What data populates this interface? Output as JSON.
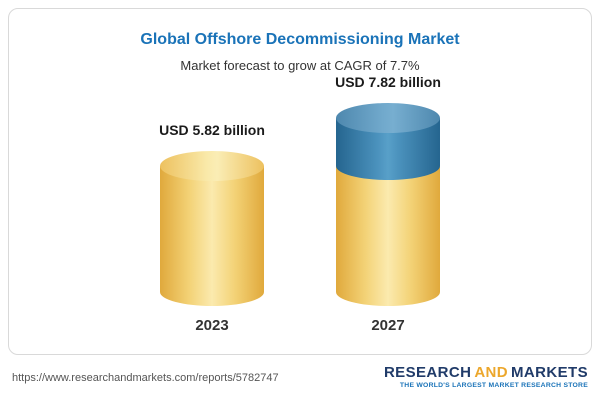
{
  "card": {
    "title": "Global Offshore Decommissioning Market",
    "subtitle": "Market forecast to grow at CAGR of 7.7%"
  },
  "chart_data": {
    "type": "bar",
    "title": "Global Offshore Decommissioning Market",
    "subtitle": "Market forecast to grow at CAGR of 7.7%",
    "cagr": "7.7%",
    "unit": "USD billion",
    "categories": [
      "2023",
      "2027"
    ],
    "values": [
      5.82,
      7.82
    ],
    "value_labels": [
      "USD 5.82 billion",
      "USD 7.82 billion"
    ],
    "ylim": [
      0,
      8
    ],
    "grid": false,
    "legend": "none",
    "bar_style": "3d-cylinder",
    "series_note": "2027 bar shows growth segment (7.82 - 5.82 = 2.0) in blue on top of yellow base"
  },
  "colors": {
    "title_blue": "#1a73b8",
    "cylinder_yellow": "#f3d276",
    "cylinder_blue": "#4b92bd",
    "logo_navy": "#203b69",
    "logo_gold": "#eca72c",
    "url_gray": "#555555",
    "card_border": "#d9d9d9"
  },
  "footer": {
    "url": "https://www.researchandmarkets.com/reports/5782747",
    "logo": {
      "research": "RESEARCH",
      "and": "AND",
      "markets": "MARKETS",
      "tagline": "THE WORLD'S LARGEST MARKET RESEARCH STORE"
    }
  }
}
